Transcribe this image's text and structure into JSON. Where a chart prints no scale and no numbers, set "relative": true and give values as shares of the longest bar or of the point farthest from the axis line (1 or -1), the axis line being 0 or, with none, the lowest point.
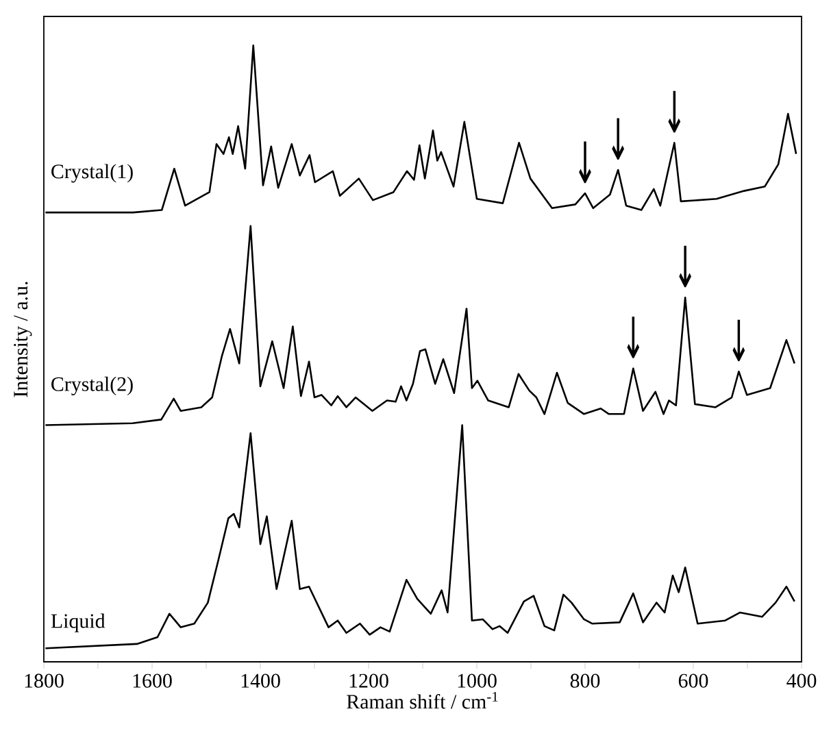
{
  "chart_data": {
    "type": "line",
    "relative": true,
    "xlabel": "Raman shift / cm$^{-1}$",
    "ylabel": "Intensity / a.u.",
    "xlim": [
      1800,
      400
    ],
    "xticks": [
      1800,
      {
        "value": 1700,
        "label": null
      },
      1600,
      {
        "value": 1500,
        "label": null
      },
      1400,
      {
        "value": 1300,
        "label": null
      },
      1200,
      {
        "value": 1100,
        "label": null
      },
      1000,
      {
        "value": 900,
        "label": null
      },
      800,
      {
        "value": 700,
        "label": null
      },
      600,
      {
        "value": 500,
        "label": null
      },
      400
    ],
    "grid": false,
    "marker": "none",
    "line_style": "solid",
    "annotations": [
      {
        "text": "↓",
        "x": 800,
        "y": 0.76
      },
      {
        "text": "↓",
        "x": 739,
        "y": 0.798
      },
      {
        "text": "↓",
        "x": 635,
        "y": 0.842
      },
      {
        "text": "↓",
        "x": 711,
        "y": 0.476
      },
      {
        "text": "↓",
        "x": 615,
        "y": 0.591
      },
      {
        "text": "↓",
        "x": 516,
        "y": 0.471
      }
    ],
    "series": [
      {
        "name": "Crystal(1)",
        "color": "#000000",
        "x": [
          1797,
          1635,
          1582,
          1559,
          1539,
          1494,
          1481,
          1468,
          1458,
          1451,
          1441,
          1428,
          1413,
          1395,
          1380,
          1367,
          1342,
          1327,
          1309,
          1299,
          1266,
          1253,
          1218,
          1192,
          1154,
          1129,
          1116,
          1106,
          1096,
          1081,
          1073,
          1066,
          1043,
          1023,
          1000,
          952,
          922,
          901,
          861,
          818,
          800,
          785,
          754,
          739,
          724,
          696,
          673,
          661,
          635,
          623,
          557,
          506,
          468,
          443,
          425,
          410
        ],
        "values": [
          0.729,
          0.729,
          0.733,
          0.8,
          0.74,
          0.762,
          0.84,
          0.824,
          0.851,
          0.824,
          0.869,
          0.8,
          1.0,
          0.773,
          0.836,
          0.769,
          0.84,
          0.789,
          0.822,
          0.778,
          0.796,
          0.756,
          0.784,
          0.749,
          0.762,
          0.796,
          0.782,
          0.838,
          0.784,
          0.862,
          0.813,
          0.827,
          0.771,
          0.876,
          0.751,
          0.744,
          0.842,
          0.784,
          0.736,
          0.742,
          0.76,
          0.736,
          0.758,
          0.798,
          0.74,
          0.733,
          0.767,
          0.74,
          0.842,
          0.747,
          0.751,
          0.764,
          0.771,
          0.807,
          0.889,
          0.824
        ]
      },
      {
        "name": "Crystal(2)",
        "color": "#000000",
        "x": [
          1797,
          1636,
          1583,
          1560,
          1547,
          1509,
          1489,
          1471,
          1456,
          1439,
          1418,
          1400,
          1378,
          1357,
          1340,
          1325,
          1310,
          1300,
          1287,
          1269,
          1257,
          1241,
          1224,
          1193,
          1166,
          1150,
          1140,
          1130,
          1118,
          1105,
          1095,
          1077,
          1062,
          1042,
          1019,
          1009,
          999,
          979,
          941,
          923,
          903,
          890,
          875,
          852,
          832,
          802,
          771,
          756,
          728,
          711,
          693,
          670,
          655,
          645,
          632,
          615,
          597,
          559,
          529,
          516,
          501,
          458,
          428,
          413
        ],
        "values": [
          0.384,
          0.387,
          0.393,
          0.427,
          0.407,
          0.413,
          0.429,
          0.496,
          0.54,
          0.484,
          0.707,
          0.447,
          0.52,
          0.444,
          0.544,
          0.431,
          0.487,
          0.429,
          0.433,
          0.416,
          0.431,
          0.413,
          0.429,
          0.407,
          0.424,
          0.422,
          0.447,
          0.424,
          0.451,
          0.504,
          0.507,
          0.451,
          0.491,
          0.436,
          0.573,
          0.444,
          0.456,
          0.424,
          0.413,
          0.467,
          0.44,
          0.429,
          0.402,
          0.469,
          0.42,
          0.402,
          0.411,
          0.402,
          0.402,
          0.476,
          0.407,
          0.438,
          0.402,
          0.424,
          0.416,
          0.591,
          0.418,
          0.413,
          0.429,
          0.471,
          0.433,
          0.444,
          0.522,
          0.484
        ]
      },
      {
        "name": "Liquid",
        "color": "#000000",
        "x": [
          1797,
          1628,
          1590,
          1568,
          1547,
          1522,
          1497,
          1477,
          1459,
          1449,
          1439,
          1418,
          1400,
          1388,
          1370,
          1342,
          1327,
          1310,
          1274,
          1257,
          1241,
          1216,
          1198,
          1178,
          1161,
          1130,
          1110,
          1085,
          1065,
          1054,
          1027,
          1009,
          989,
          971,
          958,
          943,
          913,
          895,
          875,
          857,
          840,
          825,
          802,
          787,
          736,
          711,
          693,
          668,
          653,
          638,
          627,
          615,
          592,
          541,
          514,
          473,
          448,
          428,
          413
        ],
        "values": [
          0.022,
          0.029,
          0.04,
          0.078,
          0.056,
          0.062,
          0.096,
          0.167,
          0.233,
          0.24,
          0.218,
          0.371,
          0.191,
          0.236,
          0.118,
          0.229,
          0.118,
          0.122,
          0.056,
          0.067,
          0.047,
          0.062,
          0.044,
          0.056,
          0.049,
          0.133,
          0.102,
          0.078,
          0.116,
          0.08,
          0.384,
          0.067,
          0.069,
          0.053,
          0.058,
          0.047,
          0.098,
          0.107,
          0.058,
          0.051,
          0.109,
          0.096,
          0.069,
          0.062,
          0.064,
          0.111,
          0.064,
          0.096,
          0.08,
          0.14,
          0.113,
          0.153,
          0.062,
          0.067,
          0.08,
          0.073,
          0.096,
          0.122,
          0.098
        ]
      }
    ]
  }
}
